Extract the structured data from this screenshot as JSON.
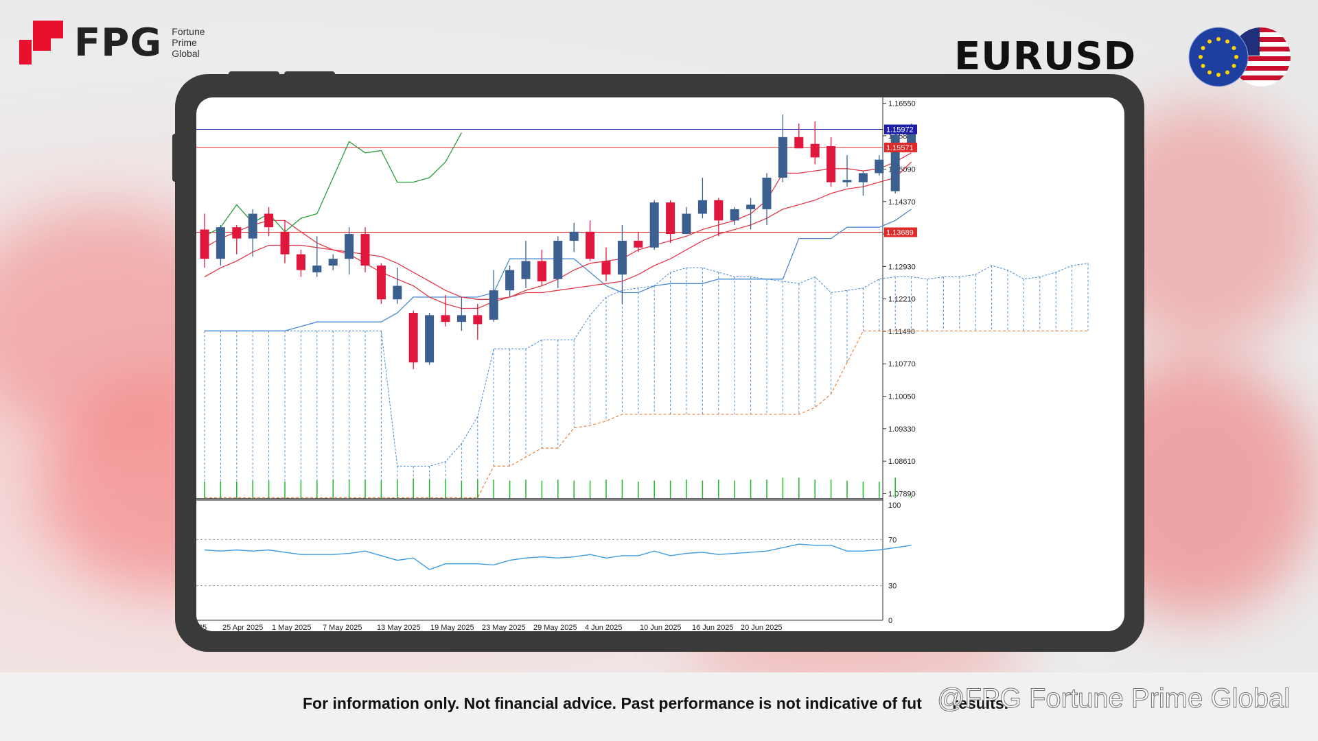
{
  "brand": {
    "logo_text": "FPG",
    "logo_sub_lines": [
      "Fortune",
      "Prime",
      "Global"
    ]
  },
  "pair_title": "EURUSD",
  "flags": [
    "EU flag",
    "US flag"
  ],
  "footer": {
    "disclaimer": "For information only. Not financial advice. Past performance is not indicative of fut",
    "disclaimer_tail": "results.",
    "watermark": "@FPG Fortune Prime Global"
  },
  "colors": {
    "bull_candle": "#3b5f8f",
    "bear_candle": "#e0163c",
    "tenkan": "#e23a4a",
    "kijun": "#4a8ad0",
    "chikou": "#2a9b3a",
    "resistance_line": "#1e1ea8",
    "level_line": "#e02a2a",
    "rsi_line": "#3d9be0",
    "volume": "#1db82a",
    "brand_red": "#e8102c"
  },
  "chart_data": {
    "type": "candlestick",
    "symbol": "EURUSD",
    "timeframe": "D1",
    "y_ticks": [
      "1.16550",
      "1.15830",
      "1.15090",
      "1.14370",
      "1.13650",
      "1.12930",
      "1.12210",
      "1.11490",
      "1.10770",
      "1.10050",
      "1.09330",
      "1.08610",
      "1.07890"
    ],
    "ylim": [
      1.0779,
      1.1665
    ],
    "x_ticks": [
      "25",
      "25 Apr 2025",
      "1 May 2025",
      "7 May 2025",
      "13 May 2025",
      "19 May 2025",
      "23 May 2025",
      "29 May 2025",
      "4 Jun 2025",
      "10 Jun 2025",
      "16 Jun 2025",
      "20 Jun 2025"
    ],
    "price_labels": [
      {
        "text": "1.15972",
        "value": 1.15972,
        "color": "#1e1ea8"
      },
      {
        "text": "1.15571",
        "value": 1.15571,
        "color": "#e02a2a"
      },
      {
        "text": "1.13689",
        "value": 1.13689,
        "color": "#e02a2a"
      }
    ],
    "horizontal_lines": [
      1.15972,
      1.15571,
      1.13689
    ],
    "candles": [
      {
        "o": 1.1375,
        "h": 1.141,
        "l": 1.129,
        "c": 1.131
      },
      {
        "o": 1.131,
        "h": 1.1385,
        "l": 1.1295,
        "c": 1.138
      },
      {
        "o": 1.138,
        "h": 1.1385,
        "l": 1.132,
        "c": 1.1355
      },
      {
        "o": 1.1355,
        "h": 1.142,
        "l": 1.1315,
        "c": 1.141
      },
      {
        "o": 1.141,
        "h": 1.1425,
        "l": 1.136,
        "c": 1.138
      },
      {
        "o": 1.137,
        "h": 1.1395,
        "l": 1.13,
        "c": 1.132
      },
      {
        "o": 1.132,
        "h": 1.133,
        "l": 1.127,
        "c": 1.1285
      },
      {
        "o": 1.128,
        "h": 1.136,
        "l": 1.127,
        "c": 1.1295
      },
      {
        "o": 1.1295,
        "h": 1.132,
        "l": 1.1285,
        "c": 1.131
      },
      {
        "o": 1.131,
        "h": 1.138,
        "l": 1.1275,
        "c": 1.1365
      },
      {
        "o": 1.1365,
        "h": 1.138,
        "l": 1.128,
        "c": 1.1295
      },
      {
        "o": 1.1295,
        "h": 1.13,
        "l": 1.121,
        "c": 1.122
      },
      {
        "o": 1.122,
        "h": 1.129,
        "l": 1.121,
        "c": 1.125
      },
      {
        "o": 1.119,
        "h": 1.1195,
        "l": 1.1065,
        "c": 1.108
      },
      {
        "o": 1.108,
        "h": 1.119,
        "l": 1.1075,
        "c": 1.1185
      },
      {
        "o": 1.1185,
        "h": 1.123,
        "l": 1.116,
        "c": 1.117
      },
      {
        "o": 1.117,
        "h": 1.1225,
        "l": 1.115,
        "c": 1.1185
      },
      {
        "o": 1.1185,
        "h": 1.121,
        "l": 1.113,
        "c": 1.1165
      },
      {
        "o": 1.1175,
        "h": 1.1285,
        "l": 1.117,
        "c": 1.124
      },
      {
        "o": 1.124,
        "h": 1.1295,
        "l": 1.1225,
        "c": 1.1285
      },
      {
        "o": 1.1265,
        "h": 1.135,
        "l": 1.1245,
        "c": 1.1305
      },
      {
        "o": 1.1305,
        "h": 1.133,
        "l": 1.125,
        "c": 1.126
      },
      {
        "o": 1.1265,
        "h": 1.136,
        "l": 1.1245,
        "c": 1.135
      },
      {
        "o": 1.135,
        "h": 1.139,
        "l": 1.1325,
        "c": 1.137
      },
      {
        "o": 1.137,
        "h": 1.1395,
        "l": 1.1305,
        "c": 1.131
      },
      {
        "o": 1.1305,
        "h": 1.1335,
        "l": 1.126,
        "c": 1.1275
      },
      {
        "o": 1.1275,
        "h": 1.1385,
        "l": 1.121,
        "c": 1.135
      },
      {
        "o": 1.135,
        "h": 1.137,
        "l": 1.1325,
        "c": 1.1335
      },
      {
        "o": 1.1335,
        "h": 1.144,
        "l": 1.133,
        "c": 1.1435
      },
      {
        "o": 1.1435,
        "h": 1.144,
        "l": 1.1345,
        "c": 1.1365
      },
      {
        "o": 1.1365,
        "h": 1.1425,
        "l": 1.1365,
        "c": 1.141
      },
      {
        "o": 1.141,
        "h": 1.149,
        "l": 1.14,
        "c": 1.144
      },
      {
        "o": 1.144,
        "h": 1.1445,
        "l": 1.136,
        "c": 1.1395
      },
      {
        "o": 1.1395,
        "h": 1.1425,
        "l": 1.1385,
        "c": 1.142
      },
      {
        "o": 1.142,
        "h": 1.1445,
        "l": 1.1375,
        "c": 1.143
      },
      {
        "o": 1.142,
        "h": 1.15,
        "l": 1.1385,
        "c": 1.149
      },
      {
        "o": 1.149,
        "h": 1.163,
        "l": 1.148,
        "c": 1.158
      },
      {
        "o": 1.158,
        "h": 1.161,
        "l": 1.1555,
        "c": 1.1555
      },
      {
        "o": 1.1565,
        "h": 1.1615,
        "l": 1.152,
        "c": 1.1535
      },
      {
        "o": 1.156,
        "h": 1.158,
        "l": 1.147,
        "c": 1.148
      },
      {
        "o": 1.148,
        "h": 1.154,
        "l": 1.147,
        "c": 1.1485
      },
      {
        "o": 1.148,
        "h": 1.1505,
        "l": 1.145,
        "c": 1.15
      },
      {
        "o": 1.15,
        "h": 1.154,
        "l": 1.1495,
        "c": 1.153
      },
      {
        "o": 1.146,
        "h": 1.159,
        "l": 1.1455,
        "c": 1.1585
      },
      {
        "o": 1.1565,
        "h": 1.161,
        "l": 1.1555,
        "c": 1.1597
      }
    ],
    "tenkan_sen": [
      1.1335,
      1.1355,
      1.137,
      1.1385,
      1.1395,
      1.1395,
      1.137,
      1.1345,
      1.133,
      1.132,
      1.13,
      1.128,
      1.1265,
      1.125,
      1.1225,
      1.121,
      1.12,
      1.12,
      1.1215,
      1.1225,
      1.124,
      1.125,
      1.1265,
      1.1285,
      1.13,
      1.1305,
      1.131,
      1.133,
      1.134,
      1.135,
      1.136,
      1.1375,
      1.1385,
      1.1395,
      1.141,
      1.144,
      1.15,
      1.15,
      1.1505,
      1.151,
      1.151,
      1.1505,
      1.151,
      1.1525,
      1.1545
    ],
    "kijun_sen": [
      1.127,
      1.129,
      1.1305,
      1.1325,
      1.134,
      1.134,
      1.134,
      1.1335,
      1.133,
      1.1325,
      1.132,
      1.1315,
      1.13,
      1.128,
      1.126,
      1.124,
      1.1225,
      1.122,
      1.122,
      1.1225,
      1.1235,
      1.1235,
      1.124,
      1.1245,
      1.125,
      1.1255,
      1.126,
      1.1275,
      1.1295,
      1.131,
      1.133,
      1.135,
      1.1365,
      1.1375,
      1.1385,
      1.14,
      1.142,
      1.143,
      1.144,
      1.1455,
      1.1465,
      1.147,
      1.148,
      1.149,
      1.1525
    ],
    "kijun_blue": [
      1.115,
      1.115,
      1.115,
      1.115,
      1.115,
      1.115,
      1.116,
      1.117,
      1.117,
      1.117,
      1.117,
      1.117,
      1.119,
      1.1225,
      1.1225,
      1.1225,
      1.1225,
      1.1225,
      1.1235,
      1.131,
      1.131,
      1.131,
      1.131,
      1.131,
      1.128,
      1.125,
      1.1235,
      1.1235,
      1.125,
      1.1255,
      1.1255,
      1.1255,
      1.1265,
      1.1265,
      1.1265,
      1.1265,
      1.1265,
      1.1355,
      1.1355,
      1.1355,
      1.138,
      1.138,
      1.138,
      1.1395,
      1.142
    ],
    "chikou_span": [
      1.136,
      1.138,
      1.143,
      1.139,
      1.141,
      1.137,
      1.14,
      1.141,
      1.149,
      1.157,
      1.1545,
      1.155,
      1.148,
      1.148,
      1.149,
      1.1525,
      1.159
    ],
    "senkou_a": [
      1.115,
      1.115,
      1.115,
      1.115,
      1.115,
      1.115,
      1.115,
      1.115,
      1.115,
      1.115,
      1.115,
      1.115,
      1.085,
      1.085,
      1.085,
      1.086,
      1.09,
      1.096,
      1.111,
      1.111,
      1.111,
      1.113,
      1.113,
      1.113,
      1.1185,
      1.1225,
      1.124,
      1.1245,
      1.125,
      1.128,
      1.129,
      1.129,
      1.128,
      1.127,
      1.127,
      1.1265,
      1.126,
      1.1255,
      1.127,
      1.1235,
      1.124,
      1.1245,
      1.1265,
      1.127,
      1.127,
      1.1265,
      1.127,
      1.127,
      1.1275,
      1.1295,
      1.1285,
      1.1265,
      1.127,
      1.128,
      1.1295,
      1.13
    ],
    "senkou_b": [
      1.078,
      1.078,
      1.078,
      1.078,
      1.078,
      1.078,
      1.078,
      1.078,
      1.078,
      1.078,
      1.078,
      1.078,
      1.078,
      1.078,
      1.078,
      1.078,
      1.078,
      1.078,
      1.085,
      1.085,
      1.087,
      1.089,
      1.089,
      1.0935,
      1.094,
      1.095,
      1.0965,
      1.0965,
      1.0965,
      1.0965,
      1.0965,
      1.0965,
      1.0965,
      1.0965,
      1.0965,
      1.0965,
      1.0965,
      1.0965,
      1.098,
      1.101,
      1.108,
      1.115,
      1.115,
      1.115,
      1.115,
      1.115,
      1.115,
      1.115,
      1.115,
      1.115,
      1.115,
      1.115,
      1.115,
      1.115,
      1.115,
      1.115
    ],
    "volume": [
      0.8,
      0.8,
      0.8,
      0.85,
      0.85,
      0.8,
      0.85,
      0.85,
      0.9,
      0.9,
      0.9,
      0.85,
      0.9,
      0.95,
      0.9,
      0.9,
      0.85,
      0.9,
      0.9,
      0.85,
      0.9,
      0.85,
      0.9,
      0.85,
      0.85,
      0.9,
      0.9,
      0.8,
      0.85,
      0.85,
      0.9,
      0.85,
      0.9,
      0.85,
      0.9,
      0.9,
      1.0,
      1.0,
      0.9,
      0.9,
      0.85,
      0.8,
      0.8,
      1.0,
      0.1
    ],
    "rsi": {
      "levels": [
        "100",
        "70",
        "30",
        "0"
      ],
      "values": [
        61,
        60,
        61,
        60,
        61,
        59,
        57,
        57,
        57,
        58,
        60,
        56,
        52,
        54,
        44,
        49,
        49,
        49,
        48,
        52,
        54,
        55,
        54,
        55,
        57,
        54,
        56,
        56,
        60,
        56,
        58,
        59,
        57,
        58,
        59,
        60,
        63,
        66,
        65,
        65,
        60,
        60,
        61,
        63,
        65
      ]
    }
  }
}
